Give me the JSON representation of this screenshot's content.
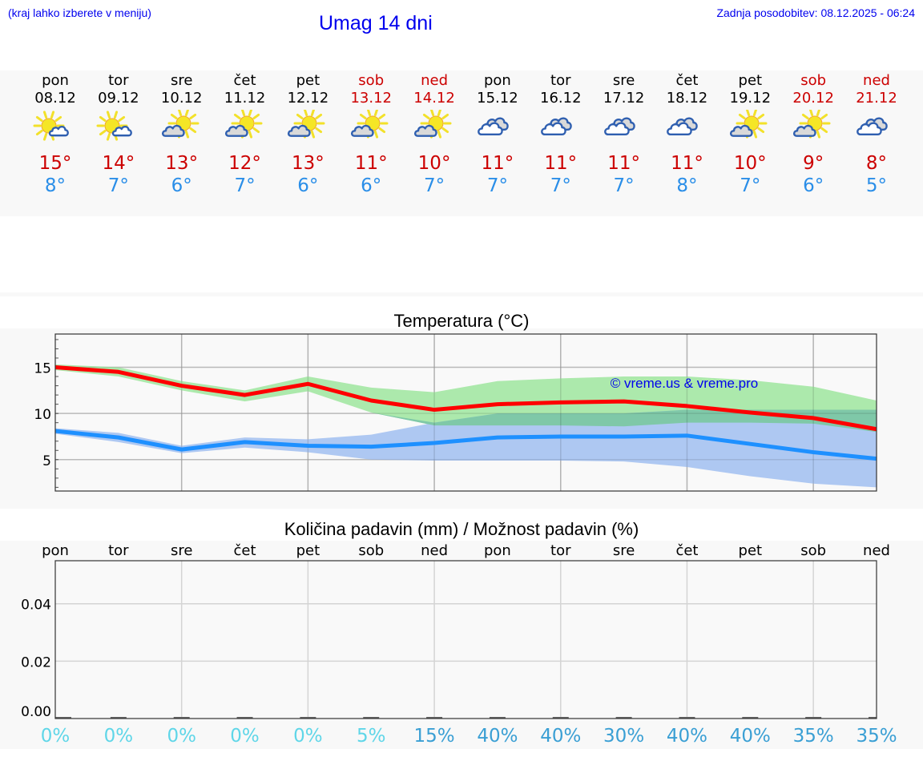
{
  "header": {
    "hint": "(kraj lahko izberete v meniju)",
    "title": "Umag 14 dni",
    "last_update": "Zadnja posodobitev: 08.12.2025 - 06:24"
  },
  "days": [
    {
      "name": "pon",
      "date": "08.12",
      "weekend": false,
      "icon": "sun-small-cloud-icon",
      "tmax": "15°",
      "tmin": "8°"
    },
    {
      "name": "tor",
      "date": "09.12",
      "weekend": false,
      "icon": "sun-small-cloud-icon",
      "tmax": "14°",
      "tmin": "7°"
    },
    {
      "name": "sre",
      "date": "10.12",
      "weekend": false,
      "icon": "partly-cloudy-icon",
      "tmax": "13°",
      "tmin": "6°"
    },
    {
      "name": "čet",
      "date": "11.12",
      "weekend": false,
      "icon": "partly-cloudy-icon",
      "tmax": "12°",
      "tmin": "7°"
    },
    {
      "name": "pet",
      "date": "12.12",
      "weekend": false,
      "icon": "partly-cloudy-icon",
      "tmax": "13°",
      "tmin": "6°"
    },
    {
      "name": "sob",
      "date": "13.12",
      "weekend": true,
      "icon": "partly-cloudy-icon",
      "tmax": "11°",
      "tmin": "6°"
    },
    {
      "name": "ned",
      "date": "14.12",
      "weekend": true,
      "icon": "partly-cloudy-icon",
      "tmax": "10°",
      "tmin": "7°"
    },
    {
      "name": "pon",
      "date": "15.12",
      "weekend": false,
      "icon": "cloudy-icon",
      "tmax": "11°",
      "tmin": "7°"
    },
    {
      "name": "tor",
      "date": "16.12",
      "weekend": false,
      "icon": "cloudy-icon",
      "tmax": "11°",
      "tmin": "7°"
    },
    {
      "name": "sre",
      "date": "17.12",
      "weekend": false,
      "icon": "cloudy-icon",
      "tmax": "11°",
      "tmin": "7°"
    },
    {
      "name": "čet",
      "date": "18.12",
      "weekend": false,
      "icon": "cloudy-icon",
      "tmax": "11°",
      "tmin": "8°"
    },
    {
      "name": "pet",
      "date": "19.12",
      "weekend": false,
      "icon": "partly-cloudy-icon",
      "tmax": "10°",
      "tmin": "7°"
    },
    {
      "name": "sob",
      "date": "20.12",
      "weekend": true,
      "icon": "partly-cloudy-icon",
      "tmax": "9°",
      "tmin": "6°"
    },
    {
      "name": "ned",
      "date": "21.12",
      "weekend": true,
      "icon": "cloudy-icon",
      "tmax": "8°",
      "tmin": "5°"
    }
  ],
  "colors": {
    "link_blue": "#0000ee",
    "weekend_red": "#cc0000",
    "tmax_line": "#ff0000",
    "tmin_line": "#1e90ff",
    "tmax_band": "#ace9ac",
    "tmin_band": "#aec8f2",
    "overlap_band": "#7fc8a8",
    "prob_low": "#5fd6e8",
    "prob_high": "#3a9fd4"
  },
  "chart_data": [
    {
      "type": "line",
      "title": "Temperatura (°C)",
      "xlabel": "",
      "ylabel": "",
      "ylim": [
        1.6,
        18.6
      ],
      "yticks": [
        5,
        10,
        15
      ],
      "grid": true,
      "watermark": "© vreme.us & vreme.pro",
      "categories": [
        "08.12",
        "09.12",
        "10.12",
        "11.12",
        "12.12",
        "13.12",
        "14.12",
        "15.12",
        "16.12",
        "17.12",
        "18.12",
        "19.12",
        "20.12",
        "21.12"
      ],
      "series": [
        {
          "name": "Tmax",
          "color": "#ff0000",
          "values": [
            15.0,
            14.5,
            13.0,
            12.0,
            13.2,
            11.4,
            10.4,
            11.0,
            11.2,
            11.3,
            10.8,
            10.1,
            9.5,
            8.3
          ]
        },
        {
          "name": "Tmin",
          "color": "#1e90ff",
          "values": [
            8.1,
            7.4,
            6.1,
            6.9,
            6.5,
            6.4,
            6.8,
            7.4,
            7.5,
            7.5,
            7.6,
            6.7,
            5.8,
            5.1
          ]
        },
        {
          "name": "Tmax range high",
          "values": [
            15.3,
            15.0,
            13.5,
            12.5,
            14.0,
            12.8,
            12.3,
            13.5,
            13.8,
            14.0,
            14.0,
            13.6,
            12.9,
            11.4
          ]
        },
        {
          "name": "Tmax range low",
          "values": [
            14.7,
            14.0,
            12.5,
            11.3,
            12.4,
            10.1,
            8.7,
            8.7,
            8.7,
            8.6,
            9.0,
            9.0,
            8.9,
            8.0
          ]
        },
        {
          "name": "Tmin range high",
          "values": [
            8.4,
            7.9,
            6.5,
            7.4,
            7.2,
            7.7,
            9.0,
            10.0,
            10.0,
            10.0,
            10.4,
            10.4,
            10.4,
            10.4
          ]
        },
        {
          "name": "Tmin range low",
          "values": [
            7.8,
            6.9,
            5.7,
            6.3,
            5.8,
            5.0,
            4.9,
            4.9,
            4.9,
            4.8,
            4.2,
            3.2,
            2.4,
            2.0
          ]
        }
      ]
    },
    {
      "type": "bar",
      "title": "Količina padavin (mm) / Možnost padavin (%)",
      "xlabel": "",
      "ylabel": "",
      "ylim": [
        0,
        0.055
      ],
      "yticks": [
        "0.00",
        "0.02",
        "0.04"
      ],
      "grid": true,
      "categories": [
        "pon",
        "tor",
        "sre",
        "čet",
        "pet",
        "sob",
        "ned",
        "pon",
        "tor",
        "sre",
        "čet",
        "pet",
        "sob",
        "ned"
      ],
      "series": [
        {
          "name": "Količina padavin (mm)",
          "values": [
            0,
            0,
            0,
            0,
            0,
            0,
            0,
            0,
            0,
            0,
            0,
            0,
            0,
            0
          ]
        },
        {
          "name": "Možnost padavin (%)",
          "values": [
            0,
            0,
            0,
            0,
            0,
            5,
            15,
            40,
            40,
            30,
            40,
            40,
            35,
            35
          ]
        }
      ],
      "probability_labels": [
        "0%",
        "0%",
        "0%",
        "0%",
        "0%",
        "5%",
        "15%",
        "40%",
        "40%",
        "30%",
        "40%",
        "40%",
        "35%",
        "35%"
      ]
    }
  ]
}
